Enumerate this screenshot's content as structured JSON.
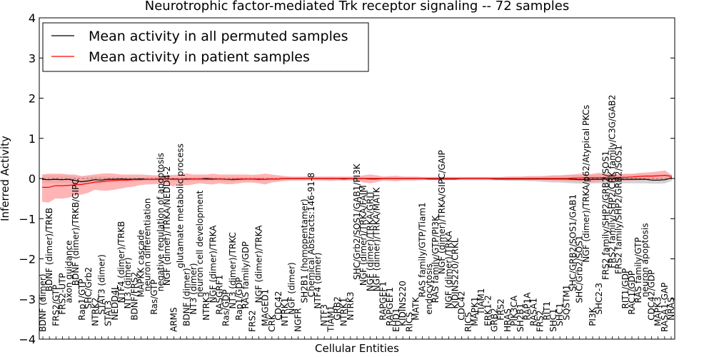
{
  "chart_data": {
    "type": "line",
    "title": "Neurotrophic factor-mediated Trk receptor signaling -- 72 samples",
    "xlabel": "Cellular Entities",
    "ylabel": "Inferred Activity",
    "ylim": [
      -4,
      4
    ],
    "yticks": [
      "4",
      "3",
      "2",
      "1",
      "0",
      "−1",
      "−2",
      "−3",
      "−4"
    ],
    "grid": false,
    "legend_position": "top-left",
    "series": [
      {
        "name": "Mean activity in all permuted samples",
        "color": "#000000",
        "values": [
          -0.02,
          -0.03,
          -0.02,
          -0.03,
          -0.02,
          -0.05,
          -0.08,
          -0.06,
          -0.03,
          -0.04,
          -0.02,
          -0.02,
          -0.01,
          -0.02,
          -0.02,
          -0.01,
          -0.02,
          -0.02,
          -0.01,
          -0.01,
          -0.01,
          -0.02,
          -0.01,
          -0.01,
          -0.01,
          0.0,
          -0.01,
          -0.01,
          -0.02,
          -0.03,
          -0.02,
          -0.01,
          -0.01,
          -0.02,
          -0.02,
          -0.01,
          -0.01,
          0.0,
          0.0,
          0.0,
          0.0,
          0.0,
          0.0,
          0.0,
          0.0,
          0.0,
          -0.01,
          0.0,
          0.0,
          0.0,
          -0.01,
          -0.01,
          0.0,
          0.0,
          0.0,
          0.0,
          0.0,
          0.0,
          0.0,
          -0.01,
          -0.01,
          -0.01,
          -0.01,
          -0.01,
          0.0,
          0.0,
          0.0,
          0.0,
          0.0,
          -0.01,
          -0.01,
          -0.01,
          -0.01,
          -0.01,
          -0.01,
          -0.01,
          -0.01,
          -0.01,
          -0.01,
          -0.01,
          -0.01,
          -0.02,
          -0.03,
          -0.02,
          -0.02,
          -0.02,
          -0.01,
          -0.01,
          -0.02,
          -0.02,
          -0.02,
          -0.02,
          -0.02,
          -0.04,
          -0.04,
          -0.03,
          0.02
        ]
      },
      {
        "name": "Mean activity in patient samples",
        "color": "#ff0000",
        "values": [
          -0.22,
          -0.22,
          -0.18,
          -0.18,
          -0.17,
          -0.16,
          -0.15,
          -0.12,
          -0.09,
          -0.08,
          -0.06,
          -0.05,
          -0.04,
          -0.04,
          -0.03,
          -0.03,
          -0.02,
          -0.02,
          -0.02,
          -0.01,
          -0.02,
          -0.02,
          -0.02,
          -0.01,
          -0.01,
          -0.02,
          -0.02,
          -0.01,
          -0.02,
          -0.02,
          -0.01,
          -0.01,
          -0.01,
          -0.01,
          -0.02,
          -0.01,
          -0.01,
          0.0,
          0.0,
          0.0,
          0.0,
          0.0,
          0.0,
          0.0,
          0.0,
          0.0,
          0.0,
          0.0,
          0.0,
          0.0,
          0.0,
          0.0,
          0.0,
          0.0,
          0.0,
          0.0,
          0.0,
          0.0,
          0.0,
          0.0,
          0.0,
          0.0,
          0.0,
          0.0,
          0.0,
          0.0,
          0.0,
          0.0,
          0.0,
          0.0,
          0.0,
          0.0,
          0.0,
          0.0,
          0.0,
          0.0,
          0.0,
          0.0,
          0.0,
          0.0,
          0.0,
          0.01,
          0.01,
          0.02,
          0.02,
          0.02,
          0.03,
          0.02,
          0.03,
          0.03,
          0.04,
          0.05,
          0.06,
          0.06,
          0.07,
          0.08,
          0.05
        ]
      }
    ],
    "bands": [
      {
        "series": "permuted",
        "color": "#c8c8c8",
        "upper": [
          0.08,
          0.08,
          0.08,
          0.08,
          0.08,
          0.06,
          0.05,
          0.05,
          0.06,
          0.06,
          0.05,
          0.05,
          0.05,
          0.04,
          0.04,
          0.04,
          0.04,
          0.04,
          0.04,
          0.04,
          0.04,
          0.04,
          0.04,
          0.04,
          0.04,
          0.04,
          0.04,
          0.04,
          0.04,
          0.04,
          0.04,
          0.04,
          0.04,
          0.04,
          0.04,
          0.04,
          0.04,
          0.04,
          0.03,
          0.03,
          0.03,
          0.03,
          0.03,
          0.03,
          0.03,
          0.03,
          0.03,
          0.03,
          0.03,
          0.03,
          0.03,
          0.03,
          0.03,
          0.03,
          0.03,
          0.03,
          0.03,
          0.03,
          0.03,
          0.03,
          0.03,
          0.03,
          0.03,
          0.03,
          0.03,
          0.03,
          0.03,
          0.03,
          0.03,
          0.03,
          0.03,
          0.04,
          0.04,
          0.04,
          0.05,
          0.05,
          0.05,
          0.06,
          0.07,
          0.07,
          0.08,
          0.09,
          0.08,
          0.09,
          0.09,
          0.09,
          0.09,
          0.1,
          0.1,
          0.1,
          0.1,
          0.1,
          0.1,
          0.1,
          0.1,
          0.1,
          0.1
        ],
        "lower": [
          -0.12,
          -0.12,
          -0.12,
          -0.12,
          -0.12,
          -0.14,
          -0.16,
          -0.15,
          -0.12,
          -0.13,
          -0.11,
          -0.1,
          -0.09,
          -0.08,
          -0.08,
          -0.07,
          -0.07,
          -0.07,
          -0.07,
          -0.07,
          -0.07,
          -0.07,
          -0.07,
          -0.07,
          -0.07,
          -0.06,
          -0.06,
          -0.06,
          -0.07,
          -0.08,
          -0.07,
          -0.06,
          -0.06,
          -0.07,
          -0.07,
          -0.06,
          -0.05,
          -0.04,
          -0.04,
          -0.04,
          -0.04,
          -0.04,
          -0.04,
          -0.04,
          -0.04,
          -0.04,
          -0.04,
          -0.04,
          -0.04,
          -0.04,
          -0.04,
          -0.04,
          -0.04,
          -0.04,
          -0.04,
          -0.04,
          -0.04,
          -0.04,
          -0.04,
          -0.04,
          -0.04,
          -0.04,
          -0.04,
          -0.04,
          -0.04,
          -0.04,
          -0.04,
          -0.04,
          -0.04,
          -0.05,
          -0.05,
          -0.06,
          -0.06,
          -0.06,
          -0.07,
          -0.07,
          -0.08,
          -0.09,
          -0.1,
          -0.1,
          -0.11,
          -0.12,
          -0.13,
          -0.12,
          -0.12,
          -0.12,
          -0.12,
          -0.12,
          -0.12,
          -0.12,
          -0.12,
          -0.12,
          -0.12,
          -0.13,
          -0.13,
          -0.12,
          -0.06
        ]
      },
      {
        "series": "patient",
        "color": "#ff9c9c",
        "upper": [
          0.1,
          0.12,
          0.12,
          0.12,
          0.1,
          0.1,
          0.06,
          0.08,
          0.1,
          0.12,
          0.13,
          0.12,
          0.1,
          0.1,
          0.1,
          0.1,
          0.09,
          0.08,
          0.08,
          0.08,
          0.09,
          0.1,
          0.13,
          0.1,
          0.1,
          0.1,
          0.12,
          0.1,
          0.1,
          0.1,
          0.1,
          0.1,
          0.09,
          0.1,
          0.12,
          0.1,
          0.08,
          0.06,
          0.05,
          0.05,
          0.05,
          0.05,
          0.05,
          0.05,
          0.05,
          0.05,
          0.05,
          0.05,
          0.05,
          0.08,
          0.1,
          0.08,
          0.05,
          0.06,
          0.07,
          0.05,
          0.05,
          0.05,
          0.04,
          0.04,
          0.04,
          0.04,
          0.04,
          0.04,
          0.04,
          0.04,
          0.04,
          0.04,
          0.04,
          0.04,
          0.04,
          0.05,
          0.05,
          0.05,
          0.06,
          0.06,
          0.06,
          0.07,
          0.08,
          0.08,
          0.09,
          0.1,
          0.12,
          0.1,
          0.12,
          0.14,
          0.12,
          0.12,
          0.1,
          0.12,
          0.12,
          0.14,
          0.15,
          0.16,
          0.18,
          0.2,
          0.08
        ],
        "lower": [
          -0.58,
          -0.6,
          -0.5,
          -0.5,
          -0.48,
          -0.42,
          -0.4,
          -0.36,
          -0.28,
          -0.3,
          -0.3,
          -0.28,
          -0.25,
          -0.22,
          -0.2,
          -0.16,
          -0.15,
          -0.14,
          -0.14,
          -0.13,
          -0.2,
          -0.15,
          -0.17,
          -0.15,
          -0.12,
          -0.14,
          -0.15,
          -0.12,
          -0.14,
          -0.14,
          -0.12,
          -0.1,
          -0.1,
          -0.12,
          -0.15,
          -0.1,
          -0.08,
          -0.06,
          -0.05,
          -0.05,
          -0.05,
          -0.05,
          -0.05,
          -0.05,
          -0.06,
          -0.05,
          -0.05,
          -0.05,
          -0.05,
          -0.1,
          -0.12,
          -0.09,
          -0.05,
          -0.06,
          -0.07,
          -0.05,
          -0.05,
          -0.05,
          -0.04,
          -0.04,
          -0.04,
          -0.04,
          -0.04,
          -0.04,
          -0.04,
          -0.04,
          -0.04,
          -0.04,
          -0.04,
          -0.04,
          -0.04,
          -0.04,
          -0.04,
          -0.04,
          -0.04,
          -0.04,
          -0.04,
          -0.05,
          -0.06,
          -0.06,
          -0.07,
          -0.08,
          -0.08,
          -0.09,
          -0.1,
          -0.08,
          -0.06,
          -0.08,
          -0.05,
          -0.06,
          -0.05,
          -0.04,
          -0.03,
          -0.04,
          -0.04,
          -0.04,
          0.02
        ]
      }
    ],
    "entities": [
      {
        "label": "BDNF (dimer)",
        "depth": 1
      },
      {
        "label": "BDNF (dimer)/TRKB",
        "depth": 8
      },
      {
        "label": "FRS2/GTP",
        "depth": 2
      },
      {
        "label": "FRS2-UTP",
        "depth": 4
      },
      {
        "label": "axon guidance",
        "depth": 6
      },
      {
        "label": "BDNF (dimer)/TRKB/GIPC",
        "depth": 9
      },
      {
        "label": "Rap1/GTP",
        "depth": 3
      },
      {
        "label": "SHC/Grb2",
        "depth": 5
      },
      {
        "label": "NTRK2",
        "depth": 2
      },
      {
        "label": "STAT3 (dimer)",
        "depth": 4
      },
      {
        "label": "STAT3",
        "depth": 2
      },
      {
        "label": "NEDD4L",
        "depth": 3
      },
      {
        "label": "NTF4 (dimer)/TRKB",
        "depth": 6
      },
      {
        "label": "NT3 (dimer)",
        "depth": 5
      },
      {
        "label": "BDNF/FRS2",
        "depth": 3
      },
      {
        "label": "MAPKK cascade",
        "depth": 7
      },
      {
        "label": "neuron differentiation",
        "depth": 8
      },
      {
        "label": "Ras/GTP",
        "depth": 4
      },
      {
        "label": "negative regulation of apoptosis",
        "depth": 8
      },
      {
        "label": "NGF (dimer)/TRKA/NEDD4-2",
        "depth": 9
      },
      {
        "label": "ARMS",
        "depth": 1
      },
      {
        "label": "glutamate metabolic process",
        "depth": 12
      },
      {
        "label": "BDNF (dimer)",
        "depth": 2
      },
      {
        "label": "NT3 (dimer)",
        "depth": 4
      },
      {
        "label": "neuron cell development",
        "depth": 7
      },
      {
        "label": "NTRK3",
        "depth": 3
      },
      {
        "label": "NGF (dimer)/TRKA",
        "depth": 6
      },
      {
        "label": "RASGRF1",
        "depth": 4
      },
      {
        "label": "Ras/GDP",
        "depth": 2
      },
      {
        "label": "NT3 (dimer)/TRKC",
        "depth": 5
      },
      {
        "label": "Rap1/GDP",
        "depth": 3
      },
      {
        "label": "RAS family/GDP",
        "depth": 5
      },
      {
        "label": "FRS2",
        "depth": 1
      },
      {
        "label": "NGF (dimer)/TRKA",
        "depth": 6
      },
      {
        "label": "MAGED1",
        "depth": 2
      },
      {
        "label": "CRK",
        "depth": 1
      },
      {
        "label": "CDC42",
        "depth": 3
      },
      {
        "label": "NTRK1",
        "depth": 2
      },
      {
        "label": "NGF (dimer)",
        "depth": 4
      },
      {
        "label": "NGFR",
        "depth": 1
      },
      {
        "label": "SH2B1 (homopentamer)",
        "depth": 6
      },
      {
        "label": "Chemical Abstracts:146-91-8",
        "depth": 7
      },
      {
        "label": "NTF4 (dimer)",
        "depth": 5
      },
      {
        "label": "NTF3",
        "depth": 2
      },
      {
        "label": "TIAM1",
        "depth": 1
      },
      {
        "label": "GRB2",
        "depth": 3
      },
      {
        "label": "NTRK1",
        "depth": 2
      },
      {
        "label": "NTRK3",
        "depth": 3
      },
      {
        "label": "SHC/Grb2/SOS1/GAB1/PI3K",
        "depth": 10
      },
      {
        "label": "NGF (dimer)/TRKA/FAIM",
        "depth": 9
      },
      {
        "label": "NGF (dimer)/TRKA/GRIT",
        "depth": 8
      },
      {
        "label": "NGF (dimer)/TRKA/MATK",
        "depth": 8
      },
      {
        "label": "RAPGEF1",
        "depth": 3
      },
      {
        "label": "RAPGEF1",
        "depth": 2
      },
      {
        "label": "EHD1",
        "depth": 1
      },
      {
        "label": "KIDINS220",
        "depth": 2
      },
      {
        "label": "RICS",
        "depth": 1
      },
      {
        "label": "MATK",
        "depth": 3
      },
      {
        "label": "RAS family/GTP/Tiam1",
        "depth": 7
      },
      {
        "label": "endocytosis",
        "depth": 4
      },
      {
        "label": "RAS family/GTP/PI3K",
        "depth": 6
      },
      {
        "label": "NGF (dimer)/TRKA/GIPC/GAIP",
        "depth": 11
      },
      {
        "label": "NGF (dimer)/TRKA",
        "depth": 5
      },
      {
        "label": "KIDINS220/CRKL",
        "depth": 5
      },
      {
        "label": "CDC42",
        "depth": 3
      },
      {
        "label": "RICS",
        "depth": 1
      },
      {
        "label": "MAPK1",
        "depth": 2
      },
      {
        "label": "TIAM1",
        "depth": 4
      },
      {
        "label": "ERK1-2",
        "depth": 2
      },
      {
        "label": "GRB2",
        "depth": 1
      },
      {
        "label": "FRS2",
        "depth": 3
      },
      {
        "label": "HRAS",
        "depth": 1
      },
      {
        "label": "PIK3CA",
        "depth": 2
      },
      {
        "label": "SH2B1",
        "depth": 1
      },
      {
        "label": "RAP1A",
        "depth": 3
      },
      {
        "label": "RASA1",
        "depth": 2
      },
      {
        "label": "FRS2",
        "depth": 1
      },
      {
        "label": "RIT1",
        "depth": 3
      },
      {
        "label": "SHC1",
        "depth": 1
      },
      {
        "label": "SHC1",
        "depth": 2
      },
      {
        "label": "SQSTM1",
        "depth": 3
      },
      {
        "label": "SHC/GRB2/SOS1/GAB1",
        "depth": 8
      },
      {
        "label": "SHC/Grb2/SOS1",
        "depth": 6
      },
      {
        "label": "NGF (dimer)/TRKA/p62/Atypical PKCs",
        "depth": 13
      },
      {
        "label": "PI3K",
        "depth": 2
      },
      {
        "label": "SHC2-3",
        "depth": 4
      },
      {
        "label": "FRS2 family/SHP2/GRB2/SOS1",
        "depth": 10
      },
      {
        "label": "FRS2 family/SHP2/CRK family/C3G/GAB2",
        "depth": 12
      },
      {
        "label": "FRS2 family/SHP2/GRB2/SOS1",
        "depth": 11
      },
      {
        "label": "RIT1/GDP",
        "depth": 5
      },
      {
        "label": "RAC1/GDP",
        "depth": 4
      },
      {
        "label": "RAS family/GTP",
        "depth": 6
      },
      {
        "label": "neuron apoptosis",
        "depth": 7
      },
      {
        "label": "CDC42/GDP",
        "depth": 3
      },
      {
        "label": "MAPK3",
        "depth": 2
      },
      {
        "label": "RASA1-GAP",
        "depth": 1
      },
      {
        "label": "NRAS",
        "depth": 3
      }
    ]
  }
}
